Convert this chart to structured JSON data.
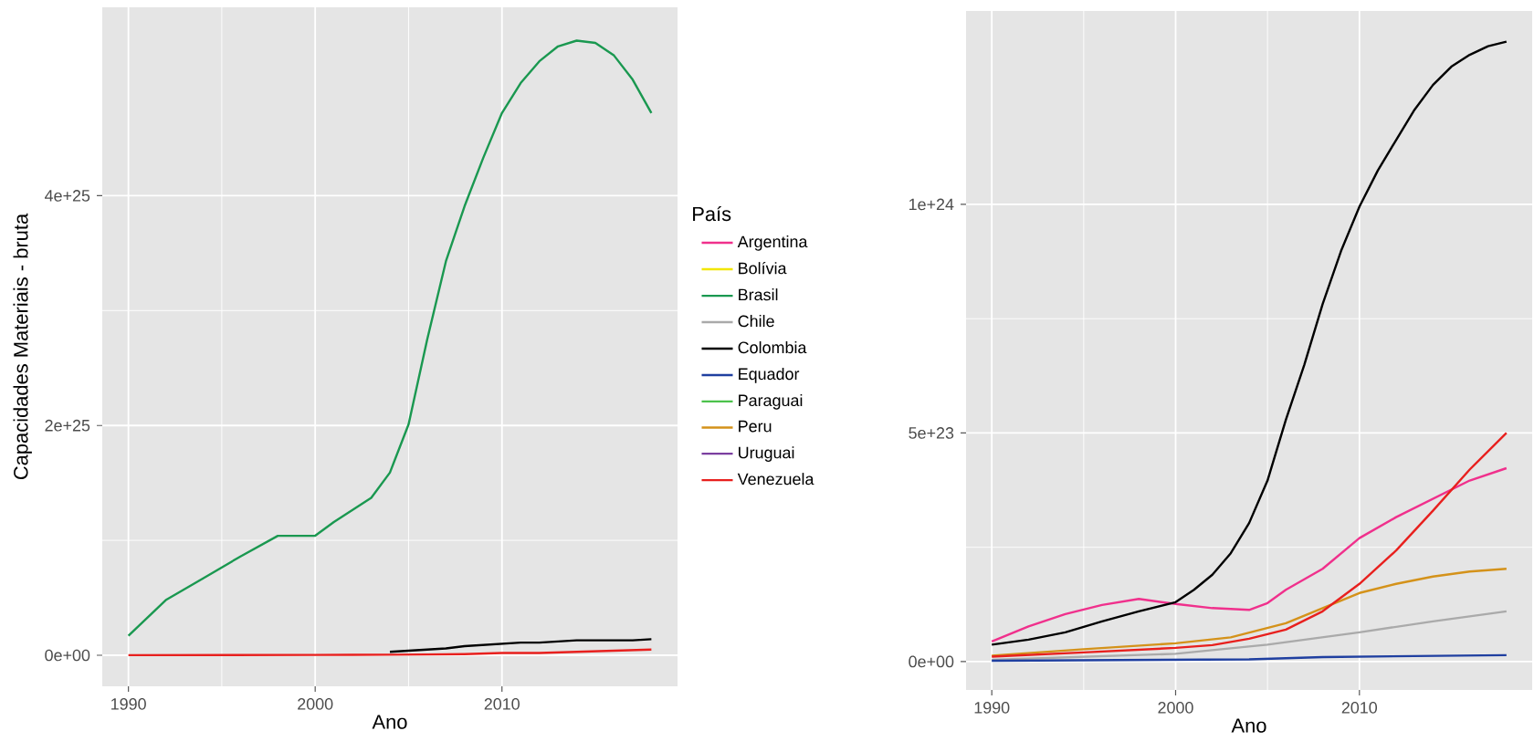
{
  "chart_data": [
    {
      "type": "line",
      "xlabel": "Ano",
      "ylabel": "Capacidades Materiais - bruta",
      "legend_title": "País",
      "legend": "right",
      "grid": true,
      "xlim": [
        1988.6,
        2019.4
      ],
      "ylim": [
        -2.7e+24,
        5.64e+25
      ],
      "xticks": [
        1990,
        2000,
        2010
      ],
      "yticks": [
        {
          "value": 0,
          "label": "0e+00"
        },
        {
          "value": 2e+25,
          "label": "2e+25"
        },
        {
          "value": 4e+25,
          "label": "4e+25"
        }
      ],
      "series": [
        {
          "name": "Argentina",
          "color": "#f0308c"
        },
        {
          "name": "Bolívia",
          "color": "#f2e600"
        },
        {
          "name": "Brasil",
          "color": "#1a9850",
          "x": [
            1990,
            1992,
            1994,
            1996,
            1998,
            2000,
            2001,
            2003,
            2004,
            2005,
            2006,
            2007,
            2008,
            2009,
            2010,
            2011,
            2012,
            2013,
            2014,
            2015,
            2016,
            2017,
            2018
          ],
          "values": [
            1.7e+24,
            4.8e+24,
            6.7e+24,
            8.6e+24,
            1.04e+25,
            1.04e+25,
            1.16e+25,
            1.37e+25,
            1.59e+25,
            2.01e+25,
            2.75e+25,
            3.43e+25,
            3.91e+25,
            4.33e+25,
            4.72e+25,
            4.98e+25,
            5.17e+25,
            5.3e+25,
            5.35e+25,
            5.33e+25,
            5.22e+25,
            5.01e+25,
            4.72e+25
          ]
        },
        {
          "name": "Chile",
          "color": "#aaaaaa"
        },
        {
          "name": "Colombia",
          "color": "#000000",
          "x": [
            2004,
            2005,
            2006,
            2007,
            2008,
            2009,
            2010,
            2011,
            2012,
            2013,
            2014,
            2015,
            2016,
            2017,
            2018
          ],
          "values": [
            3e+23,
            4e+23,
            5e+23,
            6e+23,
            8e+23,
            9e+23,
            1e+24,
            1.1e+24,
            1.1e+24,
            1.2e+24,
            1.3e+24,
            1.3e+24,
            1.3e+24,
            1.3e+24,
            1.4e+24
          ]
        },
        {
          "name": "Equador",
          "color": "#1f3fa0"
        },
        {
          "name": "Paraguai",
          "color": "#4cc24c"
        },
        {
          "name": "Peru",
          "color": "#d4921a"
        },
        {
          "name": "Uruguai",
          "color": "#7b3fa0"
        },
        {
          "name": "Venezuela",
          "color": "#e8201e",
          "x": [
            1990,
            1995,
            2000,
            2002,
            2004,
            2006,
            2008,
            2010,
            2012,
            2014,
            2016,
            2018
          ],
          "values": [
            1e+22,
            2e+22,
            3e+22,
            4e+22,
            5e+22,
            7e+22,
            1e+23,
            2e+23,
            2e+23,
            3e+23,
            4e+23,
            5e+23
          ]
        }
      ]
    },
    {
      "type": "line",
      "xlabel": "Ano",
      "grid": true,
      "xlim": [
        1988.6,
        2019.4
      ],
      "ylim": [
        -6.2e+22,
        1.423e+24
      ],
      "xticks": [
        1990,
        2000,
        2010
      ],
      "yticks": [
        {
          "value": 0,
          "label": "0e+00"
        },
        {
          "value": 5e+23,
          "label": "5e+23"
        },
        {
          "value": 1e+24,
          "label": "1e+24"
        }
      ],
      "series": [
        {
          "color": "#f0308c",
          "x": [
            1990,
            1992,
            1994,
            1996,
            1998,
            2000,
            2002,
            2004,
            2005,
            2006,
            2008,
            2010,
            2012,
            2014,
            2016,
            2018
          ],
          "values": [
            4.4e+22,
            7.7e+22,
            1.04e+23,
            1.24e+23,
            1.37e+23,
            1.26e+23,
            1.17e+23,
            1.13e+23,
            1.28e+23,
            1.57e+23,
            2.03e+23,
            2.7e+23,
            3.16e+23,
            3.56e+23,
            3.96e+23,
            4.23e+23
          ]
        },
        {
          "color": "#aaaaaa",
          "x": [
            1990,
            2000,
            2005,
            2010,
            2014,
            2018
          ],
          "values": [
            4e+21,
            1.7e+22,
            3.7e+22,
            6.4e+22,
            8.8e+22,
            1.1e+23
          ]
        },
        {
          "color": "#000000",
          "x": [
            1990,
            1992,
            1994,
            1996,
            1998,
            2000,
            2001,
            2002,
            2003,
            2004,
            2005,
            2006,
            2007,
            2008,
            2009,
            2010,
            2011,
            2012,
            2013,
            2014,
            2015,
            2016,
            2017,
            2018
          ],
          "values": [
            3.7e+22,
            4.8e+22,
            6.4e+22,
            8.8e+22,
            1.1e+23,
            1.3e+23,
            1.57e+23,
            1.9e+23,
            2.37e+23,
            3.03e+23,
            3.96e+23,
            5.29e+23,
            6.49e+23,
            7.82e+23,
            8.98e+23,
            9.95e+23,
            1.074e+24,
            1.141e+24,
            1.207e+24,
            1.261e+24,
            1.301e+24,
            1.327e+24,
            1.346e+24,
            1.356e+24
          ]
        },
        {
          "color": "#1f3fa0",
          "x": [
            1990,
            2004,
            2008,
            2013,
            2018
          ],
          "values": [
            2e+21,
            5e+21,
            1e+22,
            1.2e+22,
            1.4e+22
          ]
        },
        {
          "color": "#d4921a",
          "x": [
            1990,
            1995,
            2000,
            2003,
            2006,
            2008,
            2010,
            2012,
            2014,
            2016,
            2018
          ],
          "values": [
            1.3e+22,
            2.7e+22,
            4e+22,
            5.3e+22,
            8.4e+22,
            1.17e+23,
            1.5e+23,
            1.7e+23,
            1.86e+23,
            1.97e+23,
            2.03e+23
          ]
        },
        {
          "color": "#e8201e",
          "x": [
            1990,
            1995,
            2000,
            2002,
            2004,
            2006,
            2008,
            2010,
            2012,
            2014,
            2016,
            2018
          ],
          "values": [
            1.1e+22,
            2e+22,
            3e+22,
            3.6e+22,
            5e+22,
            7e+22,
            1.1e+23,
            1.7e+23,
            2.43e+23,
            3.3e+23,
            4.2e+23,
            5e+23
          ]
        }
      ]
    }
  ]
}
